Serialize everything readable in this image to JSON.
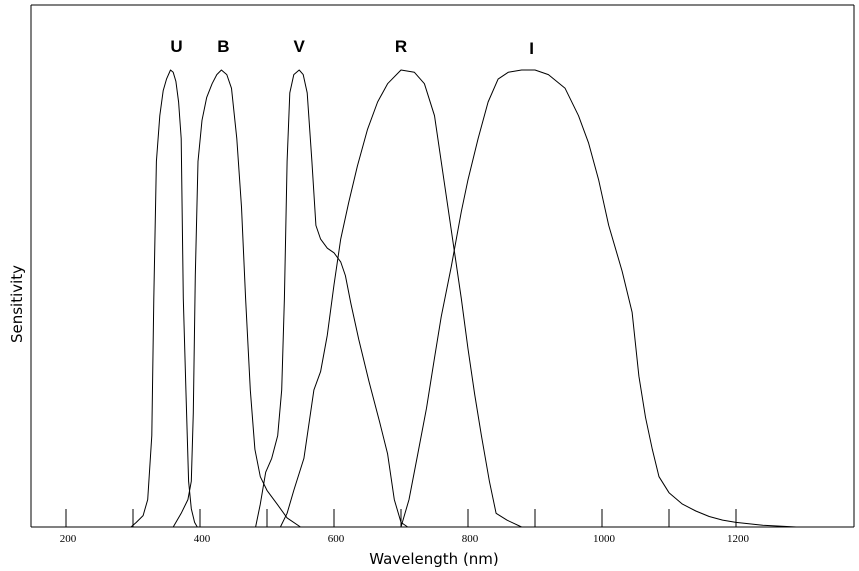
{
  "chart_data": {
    "type": "line",
    "title": "",
    "xlabel": "Wavelength (nm)",
    "ylabel": "Sensitivity",
    "xlim": [
      150,
      1380
    ],
    "ylim": [
      0,
      1
    ],
    "x_ticks": [
      200,
      300,
      400,
      500,
      600,
      700,
      800,
      900,
      1000,
      1100,
      1200
    ],
    "x_tick_labels": [
      "200",
      "400",
      "600",
      "800",
      "1000",
      "1200"
    ],
    "y_ticks_shown": false,
    "grid": false,
    "legend": "none",
    "series": [
      {
        "name": "U",
        "label_x": 365,
        "points": [
          [
            297,
            0
          ],
          [
            305,
            0.01
          ],
          [
            315,
            0.025
          ],
          [
            322,
            0.06
          ],
          [
            328,
            0.2
          ],
          [
            331,
            0.5
          ],
          [
            335,
            0.8
          ],
          [
            340,
            0.9
          ],
          [
            345,
            0.955
          ],
          [
            350,
            0.98
          ],
          [
            356,
            1.0
          ],
          [
            360,
            0.995
          ],
          [
            364,
            0.975
          ],
          [
            368,
            0.93
          ],
          [
            372,
            0.85
          ],
          [
            375,
            0.5
          ],
          [
            379,
            0.3
          ],
          [
            383,
            0.1
          ],
          [
            387,
            0.04
          ],
          [
            392,
            0.01
          ],
          [
            396,
            0
          ]
        ]
      },
      {
        "name": "B",
        "label_x": 435,
        "points": [
          [
            360,
            0
          ],
          [
            372,
            0.03
          ],
          [
            382,
            0.06
          ],
          [
            387,
            0.1
          ],
          [
            390,
            0.25
          ],
          [
            393,
            0.55
          ],
          [
            397,
            0.8
          ],
          [
            403,
            0.89
          ],
          [
            410,
            0.94
          ],
          [
            418,
            0.97
          ],
          [
            425,
            0.99
          ],
          [
            432,
            1.0
          ],
          [
            440,
            0.99
          ],
          [
            447,
            0.96
          ],
          [
            455,
            0.85
          ],
          [
            462,
            0.7
          ],
          [
            468,
            0.5
          ],
          [
            475,
            0.3
          ],
          [
            482,
            0.17
          ],
          [
            490,
            0.11
          ],
          [
            500,
            0.08
          ],
          [
            515,
            0.05
          ],
          [
            530,
            0.02
          ],
          [
            550,
            0
          ]
        ]
      },
      {
        "name": "V",
        "label_x": 548,
        "points": [
          [
            483,
            0
          ],
          [
            490,
            0.05
          ],
          [
            498,
            0.12
          ],
          [
            507,
            0.15
          ],
          [
            516,
            0.2
          ],
          [
            522,
            0.3
          ],
          [
            526,
            0.5
          ],
          [
            530,
            0.8
          ],
          [
            534,
            0.95
          ],
          [
            540,
            0.99
          ],
          [
            548,
            1.0
          ],
          [
            554,
            0.99
          ],
          [
            560,
            0.95
          ],
          [
            567,
            0.8
          ],
          [
            573,
            0.66
          ],
          [
            580,
            0.63
          ],
          [
            590,
            0.61
          ],
          [
            600,
            0.6
          ],
          [
            610,
            0.58
          ],
          [
            617,
            0.55
          ],
          [
            625,
            0.49
          ],
          [
            637,
            0.41
          ],
          [
            652,
            0.32
          ],
          [
            668,
            0.23
          ],
          [
            680,
            0.16
          ],
          [
            690,
            0.06
          ],
          [
            700,
            0.01
          ],
          [
            710,
            0
          ]
        ]
      },
      {
        "name": "R",
        "label_x": 700,
        "points": [
          [
            520,
            0
          ],
          [
            530,
            0.03
          ],
          [
            540,
            0.08
          ],
          [
            555,
            0.15
          ],
          [
            570,
            0.3
          ],
          [
            580,
            0.34
          ],
          [
            590,
            0.42
          ],
          [
            600,
            0.53
          ],
          [
            610,
            0.63
          ],
          [
            622,
            0.71
          ],
          [
            635,
            0.79
          ],
          [
            650,
            0.87
          ],
          [
            665,
            0.93
          ],
          [
            680,
            0.97
          ],
          [
            700,
            1.0
          ],
          [
            720,
            0.995
          ],
          [
            735,
            0.97
          ],
          [
            750,
            0.9
          ],
          [
            760,
            0.8
          ],
          [
            770,
            0.7
          ],
          [
            780,
            0.6
          ],
          [
            790,
            0.5
          ],
          [
            800,
            0.39
          ],
          [
            810,
            0.29
          ],
          [
            820,
            0.2
          ],
          [
            832,
            0.1
          ],
          [
            842,
            0.03
          ],
          [
            858,
            0.015
          ],
          [
            880,
            0
          ],
          [
            940,
            0
          ]
        ]
      },
      {
        "name": "I",
        "label_x": 895,
        "points": [
          [
            700,
            0
          ],
          [
            712,
            0.06
          ],
          [
            725,
            0.16
          ],
          [
            738,
            0.26
          ],
          [
            750,
            0.37
          ],
          [
            760,
            0.46
          ],
          [
            775,
            0.57
          ],
          [
            790,
            0.69
          ],
          [
            800,
            0.76
          ],
          [
            815,
            0.85
          ],
          [
            830,
            0.93
          ],
          [
            845,
            0.98
          ],
          [
            860,
            0.995
          ],
          [
            880,
            1.0
          ],
          [
            900,
            1.0
          ],
          [
            920,
            0.99
          ],
          [
            945,
            0.96
          ],
          [
            965,
            0.9
          ],
          [
            980,
            0.84
          ],
          [
            995,
            0.76
          ],
          [
            1010,
            0.66
          ],
          [
            1030,
            0.56
          ],
          [
            1045,
            0.47
          ],
          [
            1055,
            0.33
          ],
          [
            1065,
            0.24
          ],
          [
            1075,
            0.17
          ],
          [
            1085,
            0.11
          ],
          [
            1100,
            0.075
          ],
          [
            1120,
            0.05
          ],
          [
            1140,
            0.035
          ],
          [
            1160,
            0.023
          ],
          [
            1180,
            0.015
          ],
          [
            1200,
            0.01
          ],
          [
            1240,
            0.004
          ],
          [
            1290,
            0
          ]
        ]
      }
    ]
  }
}
